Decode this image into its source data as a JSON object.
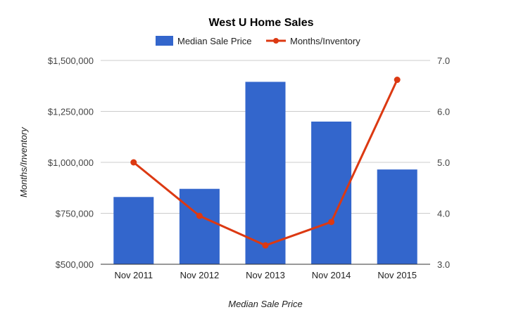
{
  "chart_data": {
    "type": "bar",
    "title": "West U Home Sales",
    "categories": [
      "Nov 2011",
      "Nov 2012",
      "Nov 2013",
      "Nov 2014",
      "Nov 2015"
    ],
    "series": [
      {
        "name": "Median Sale Price",
        "type": "bar",
        "axis": "left",
        "color": "#3366cc",
        "values": [
          830000,
          870000,
          1395000,
          1200000,
          965000
        ]
      },
      {
        "name": "Months/Inventory",
        "type": "line",
        "axis": "right",
        "color": "#dc3912",
        "values": [
          5.0,
          3.95,
          3.37,
          3.83,
          6.62
        ]
      }
    ],
    "ylim_left": [
      500000,
      1500000
    ],
    "ylim_right": [
      3.0,
      7.0
    ],
    "yticks_left": [
      "$500,000",
      "$750,000",
      "$1,000,000",
      "$1,250,000",
      "$1,500,000"
    ],
    "yticks_right": [
      "3.0",
      "4.0",
      "5.0",
      "6.0",
      "7.0"
    ],
    "xlabel": "Median Sale Price",
    "ylabel": "Months/Inventory",
    "legend_position": "top",
    "grid": true
  }
}
